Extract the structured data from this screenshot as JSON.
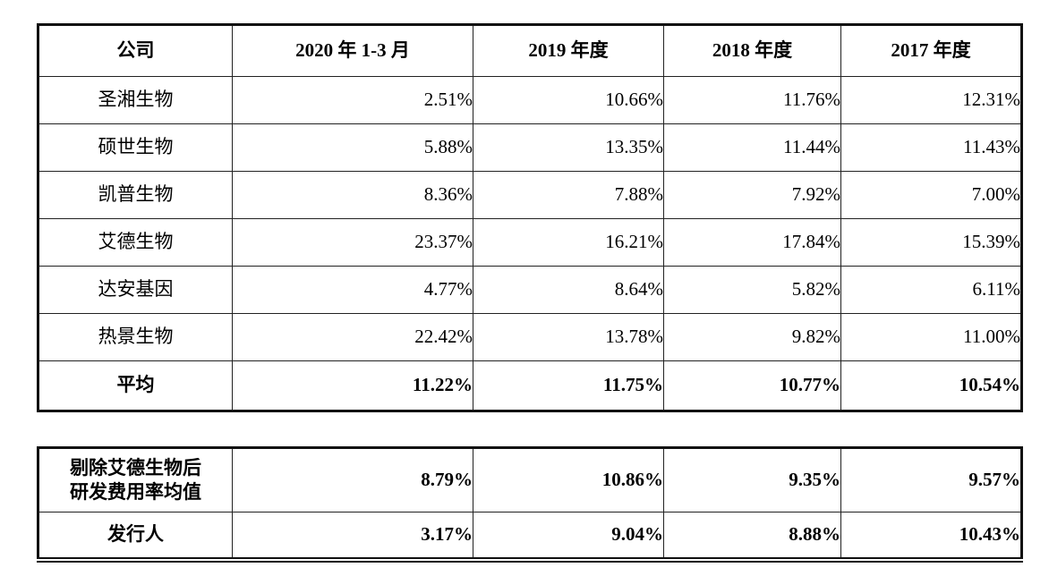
{
  "colors": {
    "background": "#ffffff",
    "text": "#000000",
    "border": "#111111"
  },
  "table1": {
    "columns": [
      "公司",
      "2020 年 1-3 月",
      "2019 年度",
      "2018 年度",
      "2017 年度"
    ],
    "rows": [
      {
        "company": "圣湘生物",
        "values": [
          "2.51%",
          "10.66%",
          "11.76%",
          "12.31%"
        ]
      },
      {
        "company": "硕世生物",
        "values": [
          "5.88%",
          "13.35%",
          "11.44%",
          "11.43%"
        ]
      },
      {
        "company": "凯普生物",
        "values": [
          "8.36%",
          "7.88%",
          "7.92%",
          "7.00%"
        ]
      },
      {
        "company": "艾德生物",
        "values": [
          "23.37%",
          "16.21%",
          "17.84%",
          "15.39%"
        ]
      },
      {
        "company": "达安基因",
        "values": [
          "4.77%",
          "8.64%",
          "5.82%",
          "6.11%"
        ]
      },
      {
        "company": "热景生物",
        "values": [
          "22.42%",
          "13.78%",
          "9.82%",
          "11.00%"
        ]
      },
      {
        "company": "平均",
        "values": [
          "11.22%",
          "11.75%",
          "10.77%",
          "10.54%"
        ]
      }
    ]
  },
  "table2": {
    "rows": [
      {
        "company": "剔除艾德生物后\n研发费用率均值",
        "values": [
          "8.79%",
          "10.86%",
          "9.35%",
          "9.57%"
        ]
      },
      {
        "company": "发行人",
        "values": [
          "3.17%",
          "9.04%",
          "8.88%",
          "10.43%"
        ]
      }
    ]
  }
}
